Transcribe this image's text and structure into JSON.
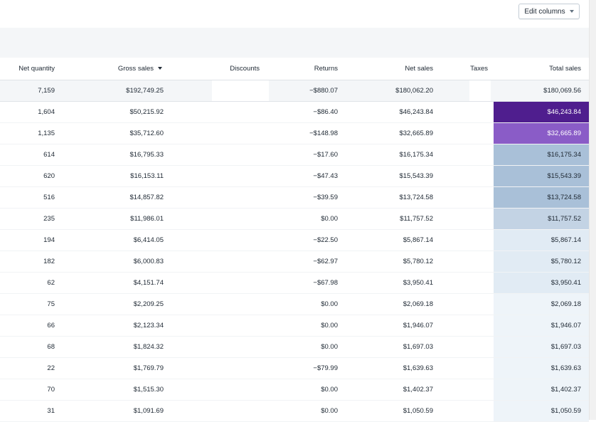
{
  "toolbar": {
    "edit_columns_label": "Edit columns"
  },
  "icons": {
    "dropdown": "chevron-down-icon",
    "sort": "sort-descending-icon"
  },
  "colors": {
    "heat_dark": "#4f1e8e",
    "heat_mid": "#8a5cc7",
    "heat_blue": "#a9c0d8",
    "heat_light_blue": "#c3d3e4",
    "heat_pale": "#e1ebf4",
    "heat_palest": "#eef4f9"
  },
  "columns": {
    "net_quantity": "Net quantity",
    "gross_sales": "Gross sales",
    "discounts": "Discounts",
    "returns": "Returns",
    "net_sales": "Net sales",
    "taxes": "Taxes",
    "total_sales": "Total sales"
  },
  "totals": {
    "net_quantity": "7,159",
    "gross_sales": "$192,749.25",
    "returns": "−$880.07",
    "net_sales": "$180,062.20",
    "total_sales": "$180,069.56"
  },
  "rows": [
    {
      "net_quantity": "1,604",
      "gross_sales": "$50,215.92",
      "returns": "−$86.40",
      "net_sales": "$46,243.84",
      "total_sales": "$46,243.84",
      "heat": "heat_dark",
      "light_text": true
    },
    {
      "net_quantity": "1,135",
      "gross_sales": "$35,712.60",
      "returns": "−$148.98",
      "net_sales": "$32,665.89",
      "total_sales": "$32,665.89",
      "heat": "heat_mid",
      "light_text": true
    },
    {
      "net_quantity": "614",
      "gross_sales": "$16,795.33",
      "returns": "−$17.60",
      "net_sales": "$16,175.34",
      "total_sales": "$16,175.34",
      "heat": "heat_blue"
    },
    {
      "net_quantity": "620",
      "gross_sales": "$16,153.11",
      "returns": "−$47.43",
      "net_sales": "$15,543.39",
      "total_sales": "$15,543.39",
      "heat": "heat_blue"
    },
    {
      "net_quantity": "516",
      "gross_sales": "$14,857.82",
      "returns": "−$39.59",
      "net_sales": "$13,724.58",
      "total_sales": "$13,724.58",
      "heat": "heat_blue"
    },
    {
      "net_quantity": "235",
      "gross_sales": "$11,986.01",
      "returns": "$0.00",
      "net_sales": "$11,757.52",
      "total_sales": "$11,757.52",
      "heat": "heat_light_blue"
    },
    {
      "net_quantity": "194",
      "gross_sales": "$6,414.05",
      "returns": "−$22.50",
      "net_sales": "$5,867.14",
      "total_sales": "$5,867.14",
      "heat": "heat_pale"
    },
    {
      "net_quantity": "182",
      "gross_sales": "$6,000.83",
      "returns": "−$62.97",
      "net_sales": "$5,780.12",
      "total_sales": "$5,780.12",
      "heat": "heat_pale"
    },
    {
      "net_quantity": "62",
      "gross_sales": "$4,151.74",
      "returns": "−$67.98",
      "net_sales": "$3,950.41",
      "total_sales": "$3,950.41",
      "heat": "heat_pale"
    },
    {
      "net_quantity": "75",
      "gross_sales": "$2,209.25",
      "returns": "$0.00",
      "net_sales": "$2,069.18",
      "total_sales": "$2,069.18",
      "heat": "heat_palest"
    },
    {
      "net_quantity": "66",
      "gross_sales": "$2,123.34",
      "returns": "$0.00",
      "net_sales": "$1,946.07",
      "total_sales": "$1,946.07",
      "heat": "heat_palest"
    },
    {
      "net_quantity": "68",
      "gross_sales": "$1,824.32",
      "returns": "$0.00",
      "net_sales": "$1,697.03",
      "total_sales": "$1,697.03",
      "heat": "heat_palest"
    },
    {
      "net_quantity": "22",
      "gross_sales": "$1,769.79",
      "returns": "−$79.99",
      "net_sales": "$1,639.63",
      "total_sales": "$1,639.63",
      "heat": "heat_palest"
    },
    {
      "net_quantity": "70",
      "gross_sales": "$1,515.30",
      "returns": "$0.00",
      "net_sales": "$1,402.37",
      "total_sales": "$1,402.37",
      "heat": "heat_palest"
    },
    {
      "net_quantity": "31",
      "gross_sales": "$1,091.69",
      "returns": "$0.00",
      "net_sales": "$1,050.59",
      "total_sales": "$1,050.59",
      "heat": "heat_palest"
    }
  ]
}
